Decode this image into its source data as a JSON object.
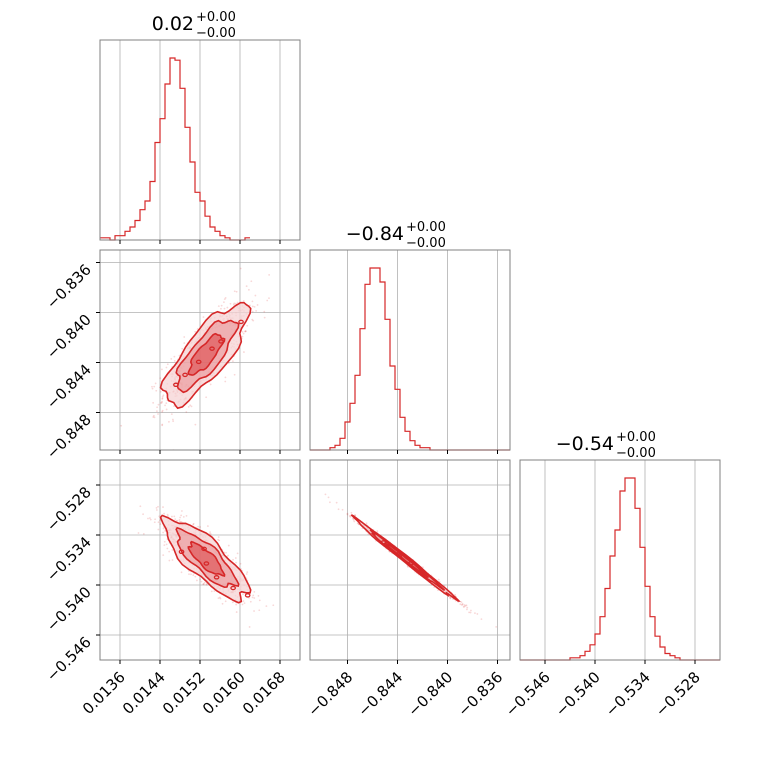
{
  "colors": {
    "accent": "#d62728",
    "fill_light": "#f6d3d4",
    "fill_mid": "#e88a8c",
    "grid": "#b0b0b0",
    "axes": "#808080"
  },
  "chart_data": {
    "type": "corner",
    "grid": true,
    "parameters": [
      {
        "range": [
          0.0132,
          0.0172
        ],
        "ticks": [
          0.0136,
          0.0144,
          0.0152,
          0.016,
          0.0168
        ],
        "tick_labels": [
          "0.0136",
          "0.0144",
          "0.0152",
          "0.0160",
          "0.0168"
        ]
      },
      {
        "range": [
          -0.851,
          -0.835
        ],
        "ticks": [
          -0.848,
          -0.844,
          -0.84,
          -0.836
        ],
        "tick_labels": [
          "−0.848",
          "−0.844",
          "−0.840",
          "−0.836"
        ]
      },
      {
        "range": [
          -0.549,
          -0.525
        ],
        "ticks": [
          -0.546,
          -0.54,
          -0.534,
          -0.528
        ],
        "tick_labels": [
          "−0.546",
          "−0.540",
          "−0.534",
          "−0.528"
        ]
      }
    ],
    "titles": [
      {
        "value": "0.02",
        "plus": "+0.00",
        "minus": "−0.00"
      },
      {
        "value": "−0.84",
        "plus": "+0.00",
        "minus": "−0.00"
      },
      {
        "value": "−0.54",
        "plus": "+0.00",
        "minus": "−0.00"
      }
    ],
    "histograms": [
      {
        "bin_start": 0.0132,
        "bin_width": 0.0001,
        "counts": [
          1,
          1,
          0,
          2,
          2,
          4,
          6,
          9,
          14,
          18,
          27,
          45,
          56,
          72,
          84,
          83,
          70,
          52,
          36,
          22,
          18,
          11,
          6,
          4,
          2,
          1,
          0,
          0,
          0,
          1
        ]
      },
      {
        "bin_start": -0.851,
        "bin_width": 0.0004,
        "counts": [
          0,
          0,
          0,
          0,
          1,
          2,
          5,
          12,
          20,
          32,
          52,
          71,
          78,
          78,
          72,
          56,
          36,
          26,
          14,
          8,
          4,
          2,
          1,
          1,
          0,
          0,
          0,
          0,
          0,
          0,
          0,
          0,
          0,
          0,
          0,
          0,
          0,
          0,
          0,
          0
        ]
      },
      {
        "bin_start": -0.549,
        "bin_width": 0.0006,
        "counts": [
          0,
          0,
          0,
          0,
          0,
          0,
          0,
          0,
          0,
          0,
          1,
          1,
          2,
          4,
          7,
          12,
          20,
          33,
          48,
          60,
          78,
          84,
          84,
          70,
          52,
          34,
          20,
          11,
          6,
          3,
          2,
          1,
          0,
          0,
          0,
          0,
          0,
          0,
          0,
          0
        ]
      }
    ],
    "means": [
      0.01532,
      -0.84335,
      -0.5369
    ],
    "sigmas": [
      0.00042,
      0.002,
      0.0024
    ],
    "correlations": {
      "1_0": 0.78,
      "2_0": -0.8,
      "2_1": -0.995
    }
  }
}
